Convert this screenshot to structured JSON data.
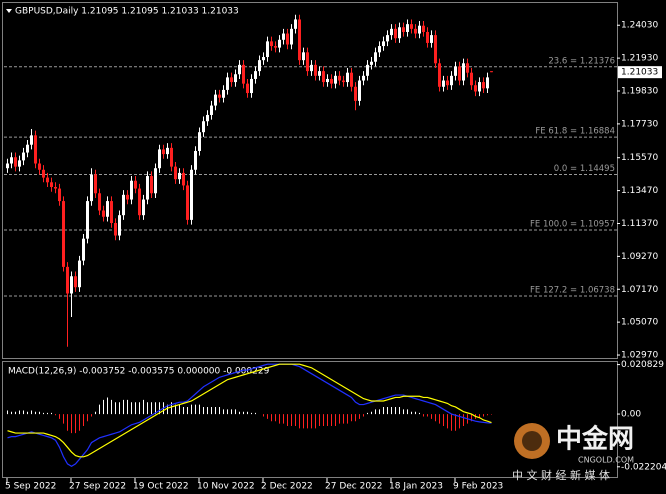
{
  "chart_data": [
    {
      "type": "candlestick",
      "title": "GBPUSD,Daily  1.21095 1.21095 1.21033 1.21033",
      "categories": [
        "5 Sep 2022",
        null,
        null,
        null,
        null,
        null,
        null,
        null,
        null,
        null,
        null,
        null,
        null,
        null,
        null,
        null,
        "27 Sep 2022",
        null,
        null,
        null,
        null,
        null,
        null,
        null,
        null,
        null,
        null,
        null,
        null,
        null,
        null,
        null,
        "19 Oct 2022",
        null,
        null,
        null,
        null,
        null,
        null,
        null,
        null,
        null,
        null,
        null,
        null,
        null,
        null,
        null,
        "10 Nov 2022",
        null,
        null,
        null,
        null,
        null,
        null,
        null,
        null,
        null,
        null,
        null,
        null,
        null,
        null,
        null,
        "2 Dec 2022",
        null,
        null,
        null,
        null,
        null,
        null,
        null,
        null,
        null,
        null,
        null,
        null,
        null,
        null,
        null,
        "27 Dec 2022",
        null,
        null,
        null,
        null,
        null,
        null,
        null,
        null,
        null,
        null,
        null,
        null,
        null,
        null,
        null,
        "18 Jan 2023",
        null,
        null,
        null,
        null,
        null,
        null,
        null,
        null,
        null,
        null,
        null,
        null,
        null,
        null,
        null,
        "9 Feb 2023",
        null,
        null,
        null,
        null,
        null,
        null,
        null,
        null,
        null
      ],
      "open": [
        1.149,
        1.152,
        1.156,
        1.15,
        1.154,
        1.159,
        1.164,
        1.17,
        1.152,
        1.148,
        1.143,
        1.14,
        1.137,
        1.136,
        1.128,
        1.086,
        1.069,
        1.08,
        1.073,
        1.09,
        1.104,
        1.128,
        1.145,
        1.133,
        1.122,
        1.118,
        1.128,
        1.114,
        1.106,
        1.119,
        1.132,
        1.129,
        1.141,
        1.136,
        1.119,
        1.129,
        1.144,
        1.133,
        1.149,
        1.161,
        1.158,
        1.162,
        1.15,
        1.142,
        1.146,
        1.138,
        1.116,
        1.148,
        1.16,
        1.172,
        1.179,
        1.183,
        1.189,
        1.196,
        1.194,
        1.199,
        1.207,
        1.204,
        1.209,
        1.215,
        1.203,
        1.197,
        1.206,
        1.211,
        1.218,
        1.22,
        1.23,
        1.227,
        1.226,
        1.231,
        1.235,
        1.228,
        1.238,
        1.244,
        1.218,
        1.223,
        1.211,
        1.215,
        1.208,
        1.211,
        1.204,
        1.206,
        1.203,
        1.208,
        1.205,
        1.204,
        1.21,
        1.201,
        1.192,
        1.205,
        1.208,
        1.215,
        1.217,
        1.223,
        1.227,
        1.23,
        1.234,
        1.238,
        1.232,
        1.239,
        1.236,
        1.241,
        1.238,
        1.235,
        1.24,
        1.236,
        1.229,
        1.234,
        1.216,
        1.201,
        1.205,
        1.202,
        1.208,
        1.214,
        1.205,
        1.216,
        1.21,
        1.202,
        1.198,
        1.204,
        1.2,
        1.21095
      ],
      "high": [
        1.155,
        1.159,
        1.159,
        1.157,
        1.162,
        1.167,
        1.174,
        1.173,
        1.155,
        1.151,
        1.146,
        1.143,
        1.14,
        1.139,
        1.131,
        1.089,
        1.083,
        1.083,
        1.093,
        1.107,
        1.131,
        1.149,
        1.148,
        1.136,
        1.125,
        1.131,
        1.131,
        1.117,
        1.122,
        1.135,
        1.135,
        1.144,
        1.144,
        1.139,
        1.132,
        1.147,
        1.147,
        1.152,
        1.164,
        1.164,
        1.165,
        1.165,
        1.153,
        1.149,
        1.149,
        1.141,
        1.151,
        1.163,
        1.175,
        1.182,
        1.186,
        1.192,
        1.199,
        1.199,
        1.202,
        1.21,
        1.21,
        1.212,
        1.218,
        1.218,
        1.206,
        1.209,
        1.214,
        1.221,
        1.223,
        1.233,
        1.233,
        1.23,
        1.234,
        1.238,
        1.238,
        1.241,
        1.247,
        1.247,
        1.226,
        1.226,
        1.218,
        1.218,
        1.214,
        1.214,
        1.209,
        1.209,
        1.211,
        1.211,
        1.208,
        1.213,
        1.213,
        1.204,
        1.208,
        1.211,
        1.218,
        1.22,
        1.226,
        1.23,
        1.233,
        1.237,
        1.241,
        1.241,
        1.242,
        1.242,
        1.244,
        1.244,
        1.241,
        1.243,
        1.243,
        1.239,
        1.237,
        1.237,
        1.219,
        1.208,
        1.208,
        1.211,
        1.217,
        1.217,
        1.219,
        1.219,
        1.213,
        1.205,
        1.207,
        1.207,
        1.21,
        1.21095
      ],
      "low": [
        1.146,
        1.149,
        1.147,
        1.147,
        1.151,
        1.156,
        1.161,
        1.149,
        1.145,
        1.14,
        1.137,
        1.134,
        1.133,
        1.125,
        1.083,
        1.035,
        1.054,
        1.07,
        1.07,
        1.087,
        1.101,
        1.125,
        1.13,
        1.119,
        1.115,
        1.115,
        1.111,
        1.103,
        1.103,
        1.116,
        1.126,
        1.126,
        1.133,
        1.116,
        1.116,
        1.126,
        1.13,
        1.13,
        1.146,
        1.155,
        1.155,
        1.147,
        1.139,
        1.139,
        1.135,
        1.113,
        1.113,
        1.145,
        1.157,
        1.169,
        1.176,
        1.18,
        1.186,
        1.191,
        1.191,
        1.196,
        1.201,
        1.201,
        1.206,
        1.2,
        1.194,
        1.194,
        1.203,
        1.208,
        1.215,
        1.217,
        1.224,
        1.223,
        1.223,
        1.228,
        1.225,
        1.225,
        1.235,
        1.215,
        1.215,
        1.208,
        1.208,
        1.205,
        1.205,
        1.201,
        1.201,
        1.2,
        1.2,
        1.202,
        1.201,
        1.201,
        1.198,
        1.186,
        1.189,
        1.202,
        1.205,
        1.212,
        1.214,
        1.22,
        1.224,
        1.227,
        1.231,
        1.229,
        1.229,
        1.233,
        1.233,
        1.235,
        1.232,
        1.232,
        1.233,
        1.226,
        1.226,
        1.213,
        1.198,
        1.198,
        1.199,
        1.199,
        1.205,
        1.202,
        1.202,
        1.207,
        1.199,
        1.195,
        1.195,
        1.197,
        1.197,
        1.21033
      ],
      "close": [
        1.152,
        1.156,
        1.15,
        1.154,
        1.159,
        1.164,
        1.17,
        1.152,
        1.148,
        1.143,
        1.14,
        1.137,
        1.136,
        1.128,
        1.086,
        1.069,
        1.08,
        1.073,
        1.09,
        1.104,
        1.128,
        1.145,
        1.133,
        1.122,
        1.118,
        1.128,
        1.114,
        1.106,
        1.119,
        1.132,
        1.129,
        1.141,
        1.136,
        1.119,
        1.129,
        1.144,
        1.133,
        1.149,
        1.161,
        1.158,
        1.162,
        1.15,
        1.142,
        1.146,
        1.138,
        1.116,
        1.148,
        1.16,
        1.172,
        1.179,
        1.183,
        1.189,
        1.196,
        1.194,
        1.199,
        1.207,
        1.204,
        1.209,
        1.215,
        1.203,
        1.197,
        1.206,
        1.211,
        1.218,
        1.22,
        1.23,
        1.227,
        1.226,
        1.231,
        1.235,
        1.228,
        1.238,
        1.244,
        1.218,
        1.223,
        1.211,
        1.215,
        1.208,
        1.211,
        1.204,
        1.206,
        1.203,
        1.208,
        1.205,
        1.204,
        1.21,
        1.201,
        1.192,
        1.205,
        1.208,
        1.215,
        1.217,
        1.223,
        1.227,
        1.23,
        1.234,
        1.238,
        1.232,
        1.239,
        1.236,
        1.241,
        1.238,
        1.235,
        1.24,
        1.236,
        1.229,
        1.234,
        1.216,
        1.201,
        1.205,
        1.202,
        1.208,
        1.214,
        1.205,
        1.216,
        1.21,
        1.202,
        1.198,
        1.204,
        1.2,
        1.207,
        1.21033
      ],
      "up_color": "#ffffff",
      "down_color": "#ff2020",
      "ylim": [
        1.0278,
        1.2545
      ],
      "yticks": [
        {
          "value": 1.2403,
          "label": "1.24030"
        },
        {
          "value": 1.2193,
          "label": "1.21930"
        },
        {
          "value": 1.1983,
          "label": "1.19830"
        },
        {
          "value": 1.1773,
          "label": "1.17730"
        },
        {
          "value": 1.1557,
          "label": "1.15570"
        },
        {
          "value": 1.1347,
          "label": "1.13470"
        },
        {
          "value": 1.1137,
          "label": "1.11370"
        },
        {
          "value": 1.0927,
          "label": "1.09270"
        },
        {
          "value": 1.0717,
          "label": "1.07170"
        },
        {
          "value": 1.0507,
          "label": "1.05070"
        },
        {
          "value": 1.0297,
          "label": "1.02970"
        }
      ],
      "levels": [
        {
          "value": 1.21376,
          "label": "23.6 = 1.21376"
        },
        {
          "value": 1.16884,
          "label": "FE 61.8 = 1.16884"
        },
        {
          "value": 1.14495,
          "label": "0.0 = 1.14495"
        },
        {
          "value": 1.10957,
          "label": "FE 100.0 = 1.10957"
        },
        {
          "value": 1.06738,
          "label": "FE 127.2 = 1.06738"
        }
      ],
      "level_color": "#9a9a9a",
      "price_marker": {
        "value": 1.21033,
        "label": "1.21033"
      }
    },
    {
      "type": "macd",
      "title": "MACD(12,26,9) -0.003752 -0.003575 0.000000 -0.000229",
      "histogram": {
        "up_color": "#ffffff",
        "down_color": "#ff2020",
        "values": [
          0.0015,
          0.001,
          0.001,
          0.0015,
          0.0015,
          0.001,
          0.0015,
          0.001,
          0.001,
          0.0005,
          0.0005,
          0.0005,
          -0.0005,
          -0.002,
          -0.004,
          -0.007,
          -0.008,
          -0.008,
          -0.007,
          -0.005,
          -0.003,
          -0.001,
          0.001,
          0.004,
          0.006,
          0.007,
          0.006,
          0.005,
          0.005,
          0.006,
          0.006,
          0.005,
          0.005,
          0.005,
          0.006,
          0.005,
          0.005,
          0.005,
          0.005,
          0.005,
          0.004,
          0.005,
          0.004,
          0.004,
          0.003,
          0.003,
          0.004,
          0.004,
          0.004,
          0.003,
          0.003,
          0.003,
          0.003,
          0.003,
          0.002,
          0.002,
          0.002,
          0.002,
          0.001,
          0.001,
          0.001,
          0.0005,
          0.0005,
          0.0,
          -0.001,
          -0.002,
          -0.003,
          -0.003,
          -0.004,
          -0.004,
          -0.005,
          -0.005,
          -0.005,
          -0.006,
          -0.006,
          -0.006,
          -0.006,
          -0.006,
          -0.005,
          -0.005,
          -0.005,
          -0.005,
          -0.005,
          -0.004,
          -0.004,
          -0.004,
          -0.003,
          -0.003,
          -0.002,
          -0.001,
          0.0005,
          0.001,
          0.002,
          0.002,
          0.003,
          0.003,
          0.003,
          0.003,
          0.003,
          0.002,
          0.002,
          0.001,
          0.001,
          0.0005,
          -0.001,
          -0.001,
          -0.002,
          -0.003,
          -0.004,
          -0.005,
          -0.006,
          -0.007,
          -0.007,
          -0.006,
          -0.005,
          -0.004,
          -0.003,
          -0.002,
          -0.0015,
          -0.001,
          -0.0005,
          -0.000229
        ]
      },
      "lines": [
        {
          "color": "#2030ff",
          "values": [
            -0.01,
            -0.0095,
            -0.0095,
            -0.009,
            -0.0085,
            -0.008,
            -0.0075,
            -0.008,
            -0.0085,
            -0.009,
            -0.0095,
            -0.01,
            -0.011,
            -0.014,
            -0.018,
            -0.021,
            -0.022,
            -0.021,
            -0.019,
            -0.017,
            -0.015,
            -0.012,
            -0.011,
            -0.01,
            -0.0095,
            -0.009,
            -0.0085,
            -0.008,
            -0.0075,
            -0.0065,
            -0.0055,
            -0.0045,
            -0.004,
            -0.0035,
            -0.0025,
            -0.0015,
            -0.0005,
            0.0005,
            0.0015,
            0.0025,
            0.0035,
            0.004,
            0.0045,
            0.005,
            0.005,
            0.0055,
            0.007,
            0.0085,
            0.01,
            0.0115,
            0.0125,
            0.0135,
            0.0145,
            0.0155,
            0.016,
            0.0165,
            0.017,
            0.0175,
            0.018,
            0.0185,
            0.0185,
            0.019,
            0.0195,
            0.02,
            0.0205,
            0.021,
            0.021,
            0.021,
            0.021,
            0.021,
            0.021,
            0.021,
            0.0205,
            0.02,
            0.019,
            0.018,
            0.017,
            0.016,
            0.015,
            0.014,
            0.013,
            0.012,
            0.011,
            0.01,
            0.009,
            0.008,
            0.007,
            0.005,
            0.004,
            0.004,
            0.0045,
            0.005,
            0.0055,
            0.006,
            0.0065,
            0.007,
            0.0075,
            0.008,
            0.008,
            0.008,
            0.0075,
            0.007,
            0.0065,
            0.006,
            0.0055,
            0.005,
            0.0045,
            0.004,
            0.003,
            0.002,
            0.001,
            0.0,
            -0.0005,
            -0.001,
            -0.0015,
            -0.002,
            -0.0025,
            -0.003,
            -0.0033,
            -0.0035,
            -0.0037,
            -0.003752
          ]
        },
        {
          "color": "#ffff00",
          "values": [
            -0.007,
            -0.0075,
            -0.008,
            -0.008,
            -0.008,
            -0.008,
            -0.008,
            -0.008,
            -0.008,
            -0.008,
            -0.0085,
            -0.009,
            -0.0095,
            -0.0105,
            -0.012,
            -0.014,
            -0.016,
            -0.0175,
            -0.018,
            -0.018,
            -0.0175,
            -0.0165,
            -0.0155,
            -0.0145,
            -0.0135,
            -0.0125,
            -0.0115,
            -0.0105,
            -0.0095,
            -0.0085,
            -0.0075,
            -0.0065,
            -0.0055,
            -0.0045,
            -0.0035,
            -0.0025,
            -0.0015,
            -0.0005,
            0.0005,
            0.0015,
            0.0025,
            0.003,
            0.0035,
            0.004,
            0.0045,
            0.005,
            0.0055,
            0.0065,
            0.0075,
            0.0085,
            0.0095,
            0.0105,
            0.0115,
            0.0125,
            0.0135,
            0.0145,
            0.015,
            0.0155,
            0.016,
            0.0165,
            0.017,
            0.0175,
            0.018,
            0.0185,
            0.019,
            0.0195,
            0.02,
            0.0205,
            0.021,
            0.021,
            0.021,
            0.021,
            0.021,
            0.021,
            0.0205,
            0.02,
            0.0195,
            0.0185,
            0.0175,
            0.0165,
            0.0155,
            0.0145,
            0.0135,
            0.0125,
            0.0115,
            0.0105,
            0.0095,
            0.0085,
            0.0075,
            0.0065,
            0.006,
            0.0055,
            0.0055,
            0.0055,
            0.0055,
            0.006,
            0.0065,
            0.007,
            0.007,
            0.0075,
            0.0075,
            0.0075,
            0.0075,
            0.0075,
            0.007,
            0.007,
            0.0065,
            0.006,
            0.0055,
            0.005,
            0.0045,
            0.0035,
            0.003,
            0.002,
            0.001,
            0.0005,
            0.0,
            -0.001,
            -0.0015,
            -0.0025,
            -0.003,
            -0.003575
          ]
        }
      ],
      "ylim": [
        -0.0265,
        0.0215
      ],
      "yticks": [
        0.020829,
        {
          "value": 0,
          "label": "0.00"
        },
        -0.022204
      ]
    }
  ],
  "watermark": {
    "name": "中金网",
    "site": "CNGOLD.COM",
    "tagline": "中 文 财 经 新 媒 体"
  }
}
